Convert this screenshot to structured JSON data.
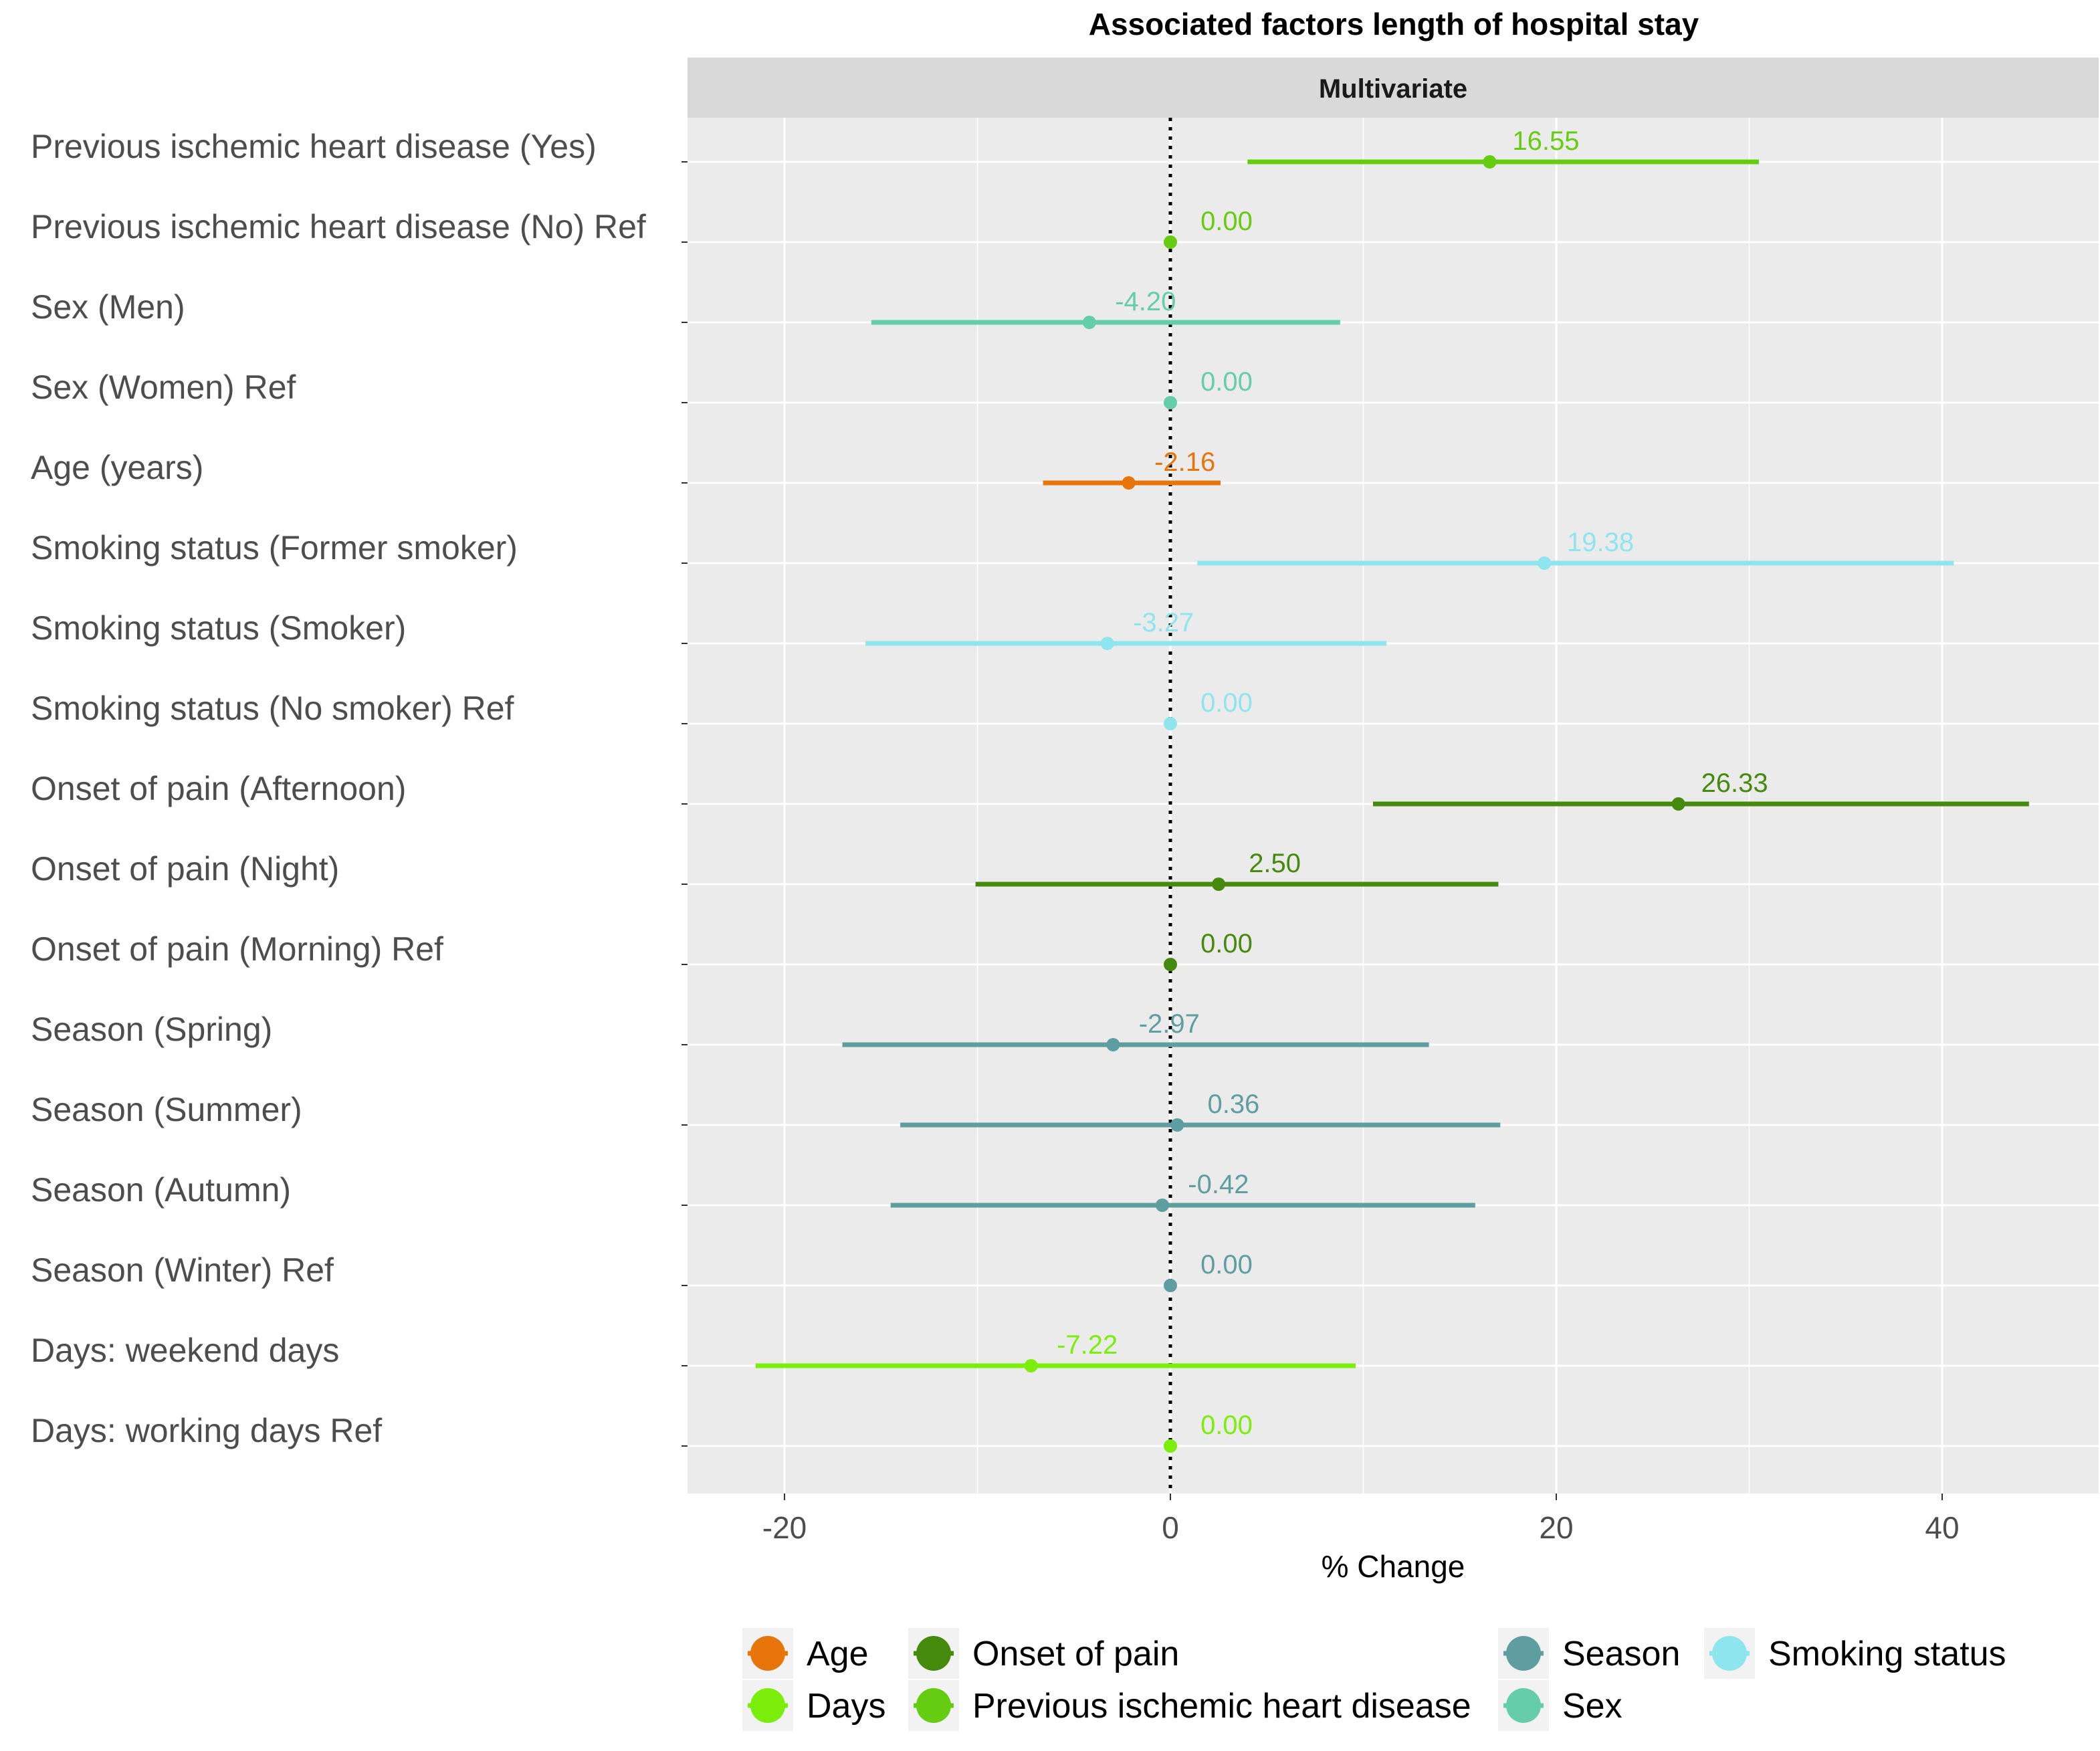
{
  "chart_data": {
    "type": "forest",
    "title": "Associated factors length of hospital stay",
    "facet": "Multivariate",
    "xlabel": "% Change",
    "ylabel": "",
    "xlim": [
      -25,
      48
    ],
    "xticks": [
      -20,
      0,
      20,
      40
    ],
    "reference_line": 0,
    "rows": [
      {
        "label": "Previous ischemic heart disease (Yes)",
        "group": "Previous ischemic heart disease",
        "estimate": 16.55,
        "lower": 4.0,
        "upper": 30.5,
        "text": "16.55"
      },
      {
        "label": "Previous ischemic heart disease (No) Ref",
        "group": "Previous ischemic heart disease",
        "estimate": 0.0,
        "lower": 0.0,
        "upper": 0.0,
        "text": "0.00"
      },
      {
        "label": "Sex (Men)",
        "group": "Sex",
        "estimate": -4.2,
        "lower": -15.5,
        "upper": 8.8,
        "text": "-4.20"
      },
      {
        "label": "Sex (Women) Ref",
        "group": "Sex",
        "estimate": 0.0,
        "lower": 0.0,
        "upper": 0.0,
        "text": "0.00"
      },
      {
        "label": "Age (years)",
        "group": "Age",
        "estimate": -2.16,
        "lower": -6.6,
        "upper": 2.6,
        "text": "-2.16"
      },
      {
        "label": "Smoking status (Former smoker)",
        "group": "Smoking status",
        "estimate": 19.38,
        "lower": 1.4,
        "upper": 40.6,
        "text": "19.38"
      },
      {
        "label": "Smoking status (Smoker)",
        "group": "Smoking status",
        "estimate": -3.27,
        "lower": -15.8,
        "upper": 11.2,
        "text": "-3.27"
      },
      {
        "label": "Smoking status (No smoker) Ref",
        "group": "Smoking status",
        "estimate": 0.0,
        "lower": 0.0,
        "upper": 0.0,
        "text": "0.00"
      },
      {
        "label": "Onset of pain (Afternoon)",
        "group": "Onset of pain",
        "estimate": 26.33,
        "lower": 10.5,
        "upper": 44.5,
        "text": "26.33"
      },
      {
        "label": "Onset of pain (Night)",
        "group": "Onset of pain",
        "estimate": 2.5,
        "lower": -10.1,
        "upper": 17.0,
        "text": "2.50"
      },
      {
        "label": "Onset of pain (Morning) Ref",
        "group": "Onset of pain",
        "estimate": 0.0,
        "lower": 0.0,
        "upper": 0.0,
        "text": "0.00"
      },
      {
        "label": "Season (Spring)",
        "group": "Season",
        "estimate": -2.97,
        "lower": -17.0,
        "upper": 13.4,
        "text": "-2.97"
      },
      {
        "label": "Season (Summer)",
        "group": "Season",
        "estimate": 0.36,
        "lower": -14.0,
        "upper": 17.1,
        "text": "0.36"
      },
      {
        "label": "Season (Autumn)",
        "group": "Season",
        "estimate": -0.42,
        "lower": -14.5,
        "upper": 15.8,
        "text": "-0.42"
      },
      {
        "label": "Season (Winter) Ref",
        "group": "Season",
        "estimate": 0.0,
        "lower": 0.0,
        "upper": 0.0,
        "text": "0.00"
      },
      {
        "label": "Days: weekend days",
        "group": "Days",
        "estimate": -7.22,
        "lower": -21.5,
        "upper": 9.6,
        "text": "-7.22"
      },
      {
        "label": "Days: working days Ref",
        "group": "Days",
        "estimate": 0.0,
        "lower": 0.0,
        "upper": 0.0,
        "text": "0.00"
      }
    ],
    "legend": [
      {
        "name": "Age",
        "color": "#e8740c"
      },
      {
        "name": "Days",
        "color": "#7cee0c"
      },
      {
        "name": "Onset of pain",
        "color": "#458a0c"
      },
      {
        "name": "Previous ischemic heart disease",
        "color": "#66cc11"
      },
      {
        "name": "Season",
        "color": "#5f9ea0"
      },
      {
        "name": "Sex",
        "color": "#66cdaa"
      },
      {
        "name": "Smoking status",
        "color": "#8ee5ee"
      }
    ],
    "legend_position": "bottom"
  }
}
